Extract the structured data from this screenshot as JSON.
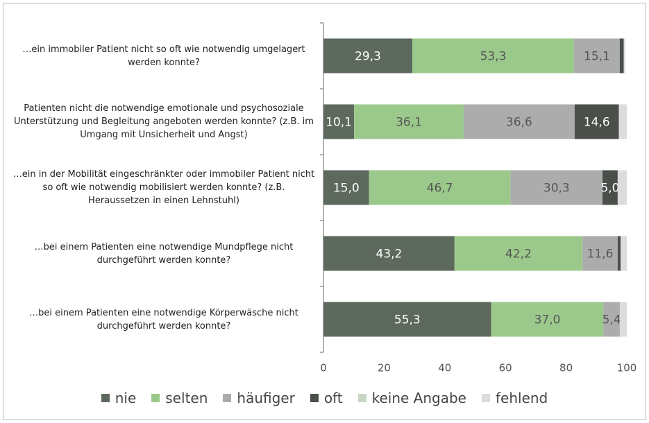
{
  "chart_data": {
    "type": "stacked-barh",
    "categories": [
      "…ein immobiler Patient nicht so oft wie notwendig umgelagert werden konnte?",
      "Patienten nicht die notwendige emotionale und psychosoziale Unterstützung und Begleitung angeboten werden konnte? (z.B. im Umgang mit Unsicherheit und Angst)",
      "…ein in der Mobilität eingeschränkter oder immobiler Patient nicht so oft wie notwendig mobilisiert werden konnte? (z.B. Heraussetzen in einen Lehnstuhl)",
      "…bei einem Patienten eine notwendige Mundpflege nicht durchgeführt werden konnte?",
      "…bei einem Patienten eine notwendige Körperwäsche nicht durchgeführt werden konnte?"
    ],
    "series": [
      {
        "name": "nie",
        "color": "#5e695d",
        "values": [
          29.3,
          10.1,
          15.0,
          43.2,
          55.3
        ],
        "value_labels": [
          "29,3",
          "10,1",
          "15,0",
          "43,2",
          "55,3"
        ]
      },
      {
        "name": "selten",
        "color": "#9bc98b",
        "values": [
          53.3,
          36.1,
          46.7,
          42.2,
          37.0
        ],
        "value_labels": [
          "53,3",
          "36,1",
          "46,7",
          "42,2",
          "37,0"
        ]
      },
      {
        "name": "häufiger",
        "color": "#acacac",
        "values": [
          15.1,
          36.6,
          30.3,
          11.6,
          5.4
        ],
        "value_labels": [
          "15,1",
          "36,6",
          "30,3",
          "11,6",
          "5,4"
        ]
      },
      {
        "name": "oft",
        "color": "#4a4f4a",
        "values": [
          1.3,
          14.6,
          5.0,
          1.0,
          0
        ],
        "value_labels": [
          null,
          "14,6",
          "5,0",
          null,
          null
        ]
      },
      {
        "name": "keine Angabe",
        "color": "#c9d6c5",
        "values": [
          0,
          0,
          0,
          0,
          0
        ],
        "value_labels": [
          null,
          null,
          null,
          null,
          null
        ]
      },
      {
        "name": "fehlend",
        "color": "#dcdcdc",
        "values": [
          0.5,
          2.6,
          3.0,
          2.0,
          2.3
        ],
        "value_labels": [
          null,
          null,
          null,
          null,
          null
        ]
      }
    ],
    "xlim": [
      0,
      100
    ],
    "xticks": [
      0,
      20,
      40,
      60,
      80,
      100
    ]
  }
}
